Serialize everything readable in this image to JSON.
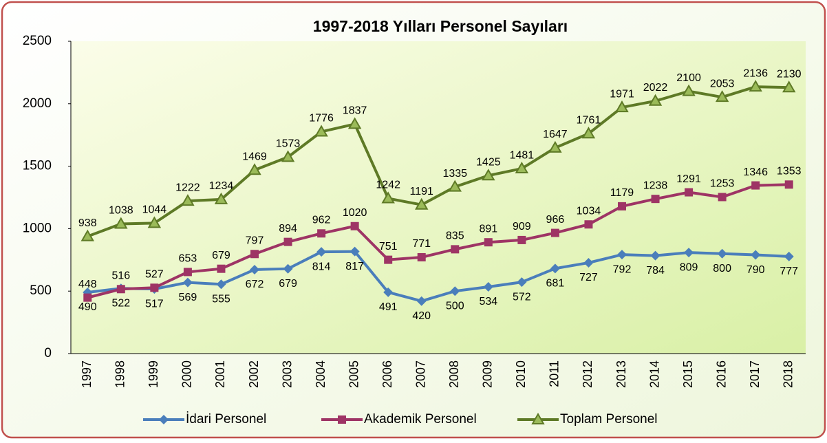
{
  "chart_data": {
    "type": "line",
    "title": "1997-2018 Yılları Personel Sayıları",
    "categories": [
      "1997",
      "1998",
      "1999",
      "2000",
      "2001",
      "2002",
      "2003",
      "2004",
      "2005",
      "2006",
      "2007",
      "2008",
      "2009",
      "2010",
      "2011",
      "2012",
      "2013",
      "2014",
      "2015",
      "2016",
      "2017",
      "2018"
    ],
    "series": [
      {
        "name": "İdari Personel",
        "color": "#4a7ebb",
        "marker": "diamond",
        "values": [
          490,
          522,
          517,
          569,
          555,
          672,
          679,
          814,
          817,
          491,
          420,
          500,
          534,
          572,
          681,
          727,
          792,
          784,
          809,
          800,
          790,
          777
        ]
      },
      {
        "name": "Akademik Personel",
        "color": "#9e3465",
        "marker": "square",
        "values": [
          448,
          516,
          527,
          653,
          679,
          797,
          894,
          962,
          1020,
          751,
          771,
          835,
          891,
          909,
          966,
          1034,
          1179,
          1238,
          1291,
          1253,
          1346,
          1353
        ]
      },
      {
        "name": "Toplam Personel",
        "color": "#5e7a26",
        "marker": "triangle",
        "values": [
          938,
          1038,
          1044,
          1222,
          1234,
          1469,
          1573,
          1776,
          1837,
          1242,
          1191,
          1335,
          1425,
          1481,
          1647,
          1761,
          1971,
          2022,
          2100,
          2053,
          2136,
          2130
        ]
      }
    ],
    "ylim": [
      0,
      2500
    ],
    "yticks": [
      0,
      500,
      1000,
      1500,
      2000,
      2500
    ],
    "grid": false,
    "legend": "bottom"
  }
}
